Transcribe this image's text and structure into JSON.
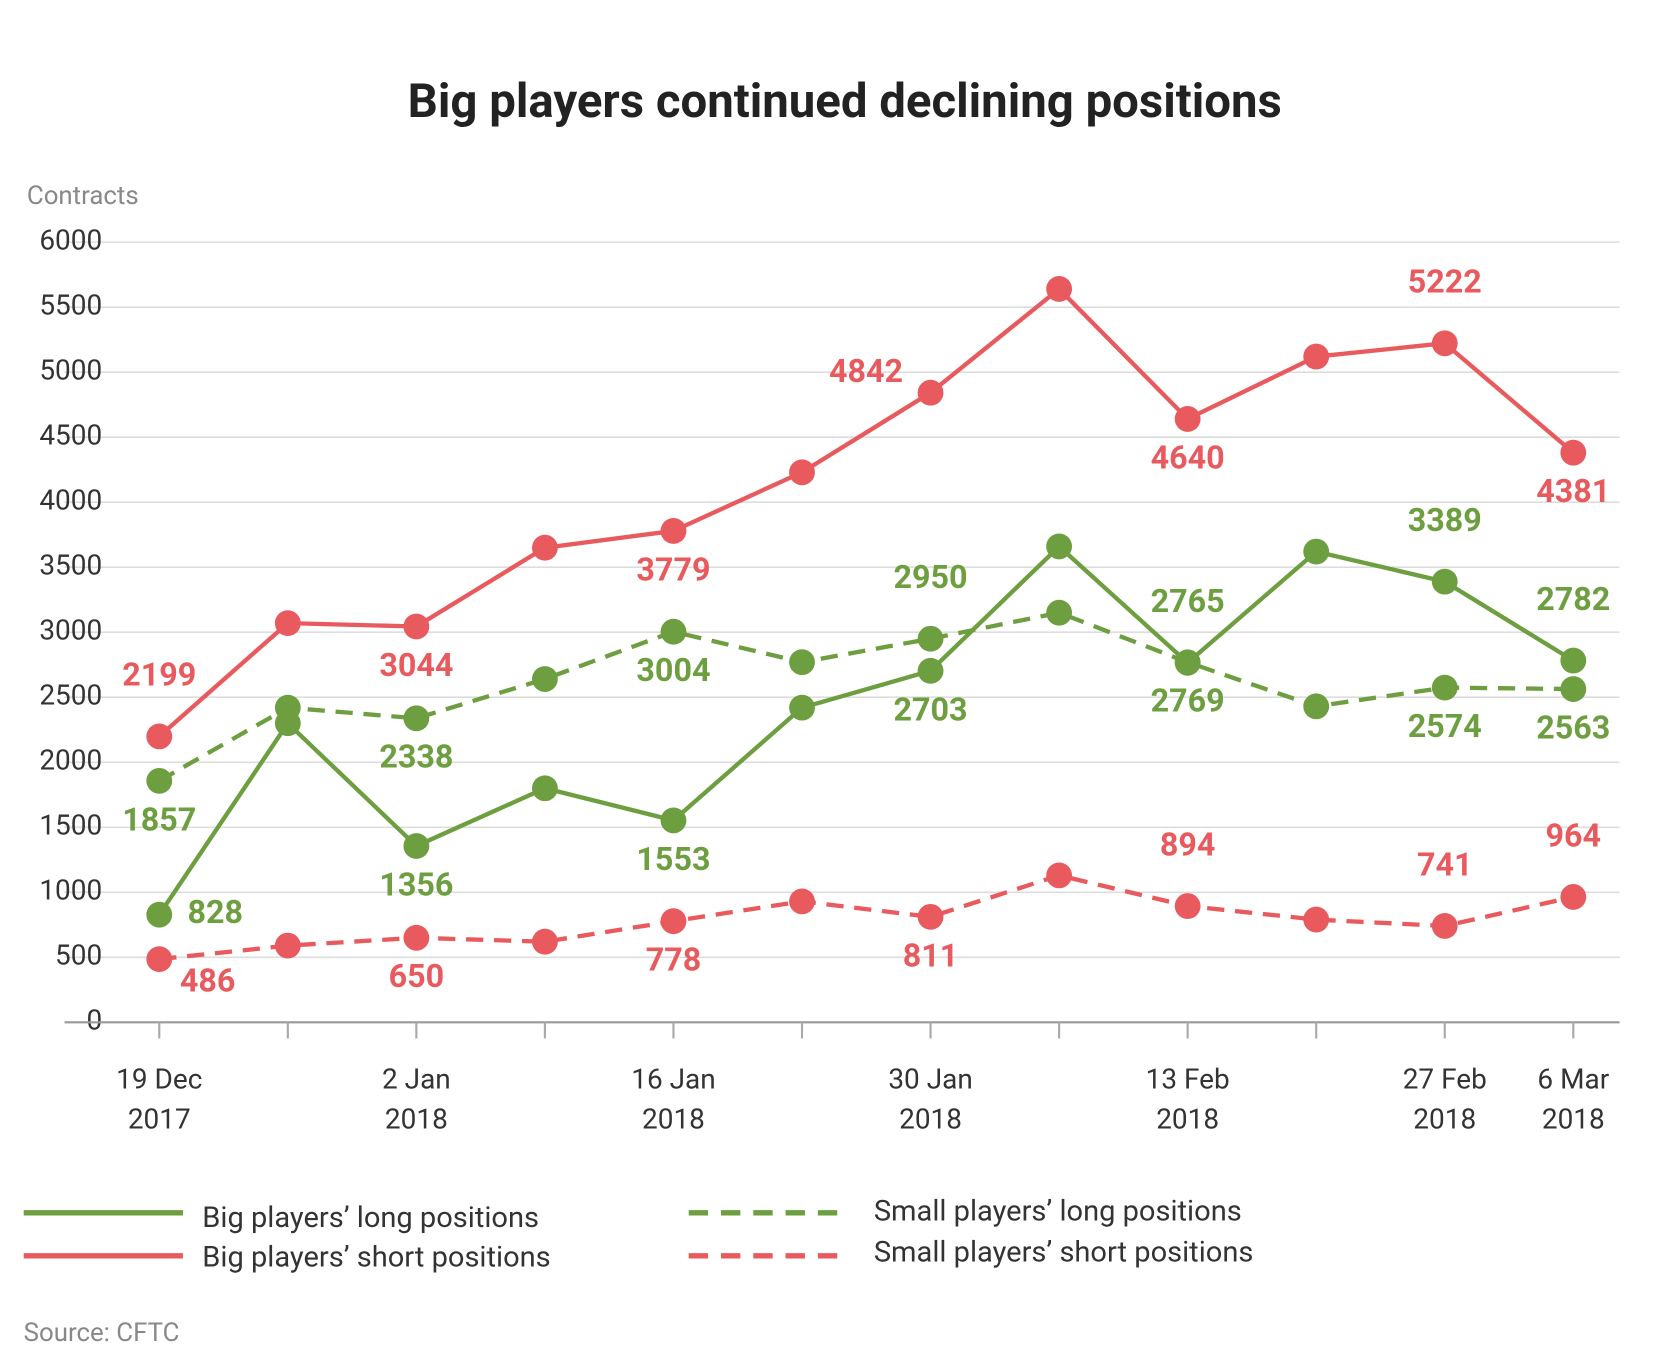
{
  "chart_data": {
    "type": "line",
    "title": "Big players continued declining positions",
    "y_axis_label": "Contracts",
    "source": "Source: CFTC",
    "categories": [
      "19 Dec 2017",
      null,
      "2 Jan 2018",
      null,
      "16 Jan 2018",
      null,
      "30 Jan 2018",
      null,
      "13 Feb 2018",
      null,
      "27 Feb 2018",
      "6 Mar 2018"
    ],
    "series": [
      {
        "name": "Big players’ long positions",
        "color": "#6d9e3f",
        "dashed": false,
        "values": [
          828,
          2300,
          1356,
          1800,
          1553,
          2420,
          2703,
          3660,
          2765,
          3620,
          3389,
          2782
        ],
        "value_labels": [
          828,
          null,
          1356,
          null,
          1553,
          null,
          2703,
          null,
          2765,
          null,
          3389,
          2782
        ]
      },
      {
        "name": "Big players’ short positions",
        "color": "#e85a5e",
        "dashed": false,
        "values": [
          2199,
          3070,
          3044,
          3650,
          3779,
          4230,
          4842,
          5640,
          4640,
          5120,
          5222,
          4381
        ],
        "value_labels": [
          2199,
          null,
          3044,
          null,
          3779,
          null,
          4842,
          null,
          4640,
          null,
          5222,
          4381
        ]
      },
      {
        "name": "Small players’ long positions",
        "color": "#6d9e3f",
        "dashed": true,
        "values": [
          1857,
          2420,
          2338,
          2640,
          3004,
          2770,
          2950,
          3150,
          2769,
          2430,
          2574,
          2563
        ],
        "value_labels": [
          1857,
          null,
          2338,
          null,
          3004,
          null,
          2950,
          null,
          2769,
          null,
          2574,
          2563
        ]
      },
      {
        "name": "Small players’ short positions",
        "color": "#e85a5e",
        "dashed": true,
        "values": [
          486,
          590,
          650,
          620,
          778,
          930,
          811,
          1130,
          894,
          790,
          741,
          964
        ],
        "value_labels": [
          486,
          null,
          650,
          null,
          778,
          null,
          811,
          null,
          894,
          null,
          741,
          964
        ]
      }
    ],
    "ylim": [
      0,
      6000
    ],
    "yticks": [
      0,
      500,
      1000,
      1500,
      2000,
      2500,
      3000,
      3500,
      4000,
      4500,
      5000,
      5500,
      6000
    ],
    "grid": true
  }
}
